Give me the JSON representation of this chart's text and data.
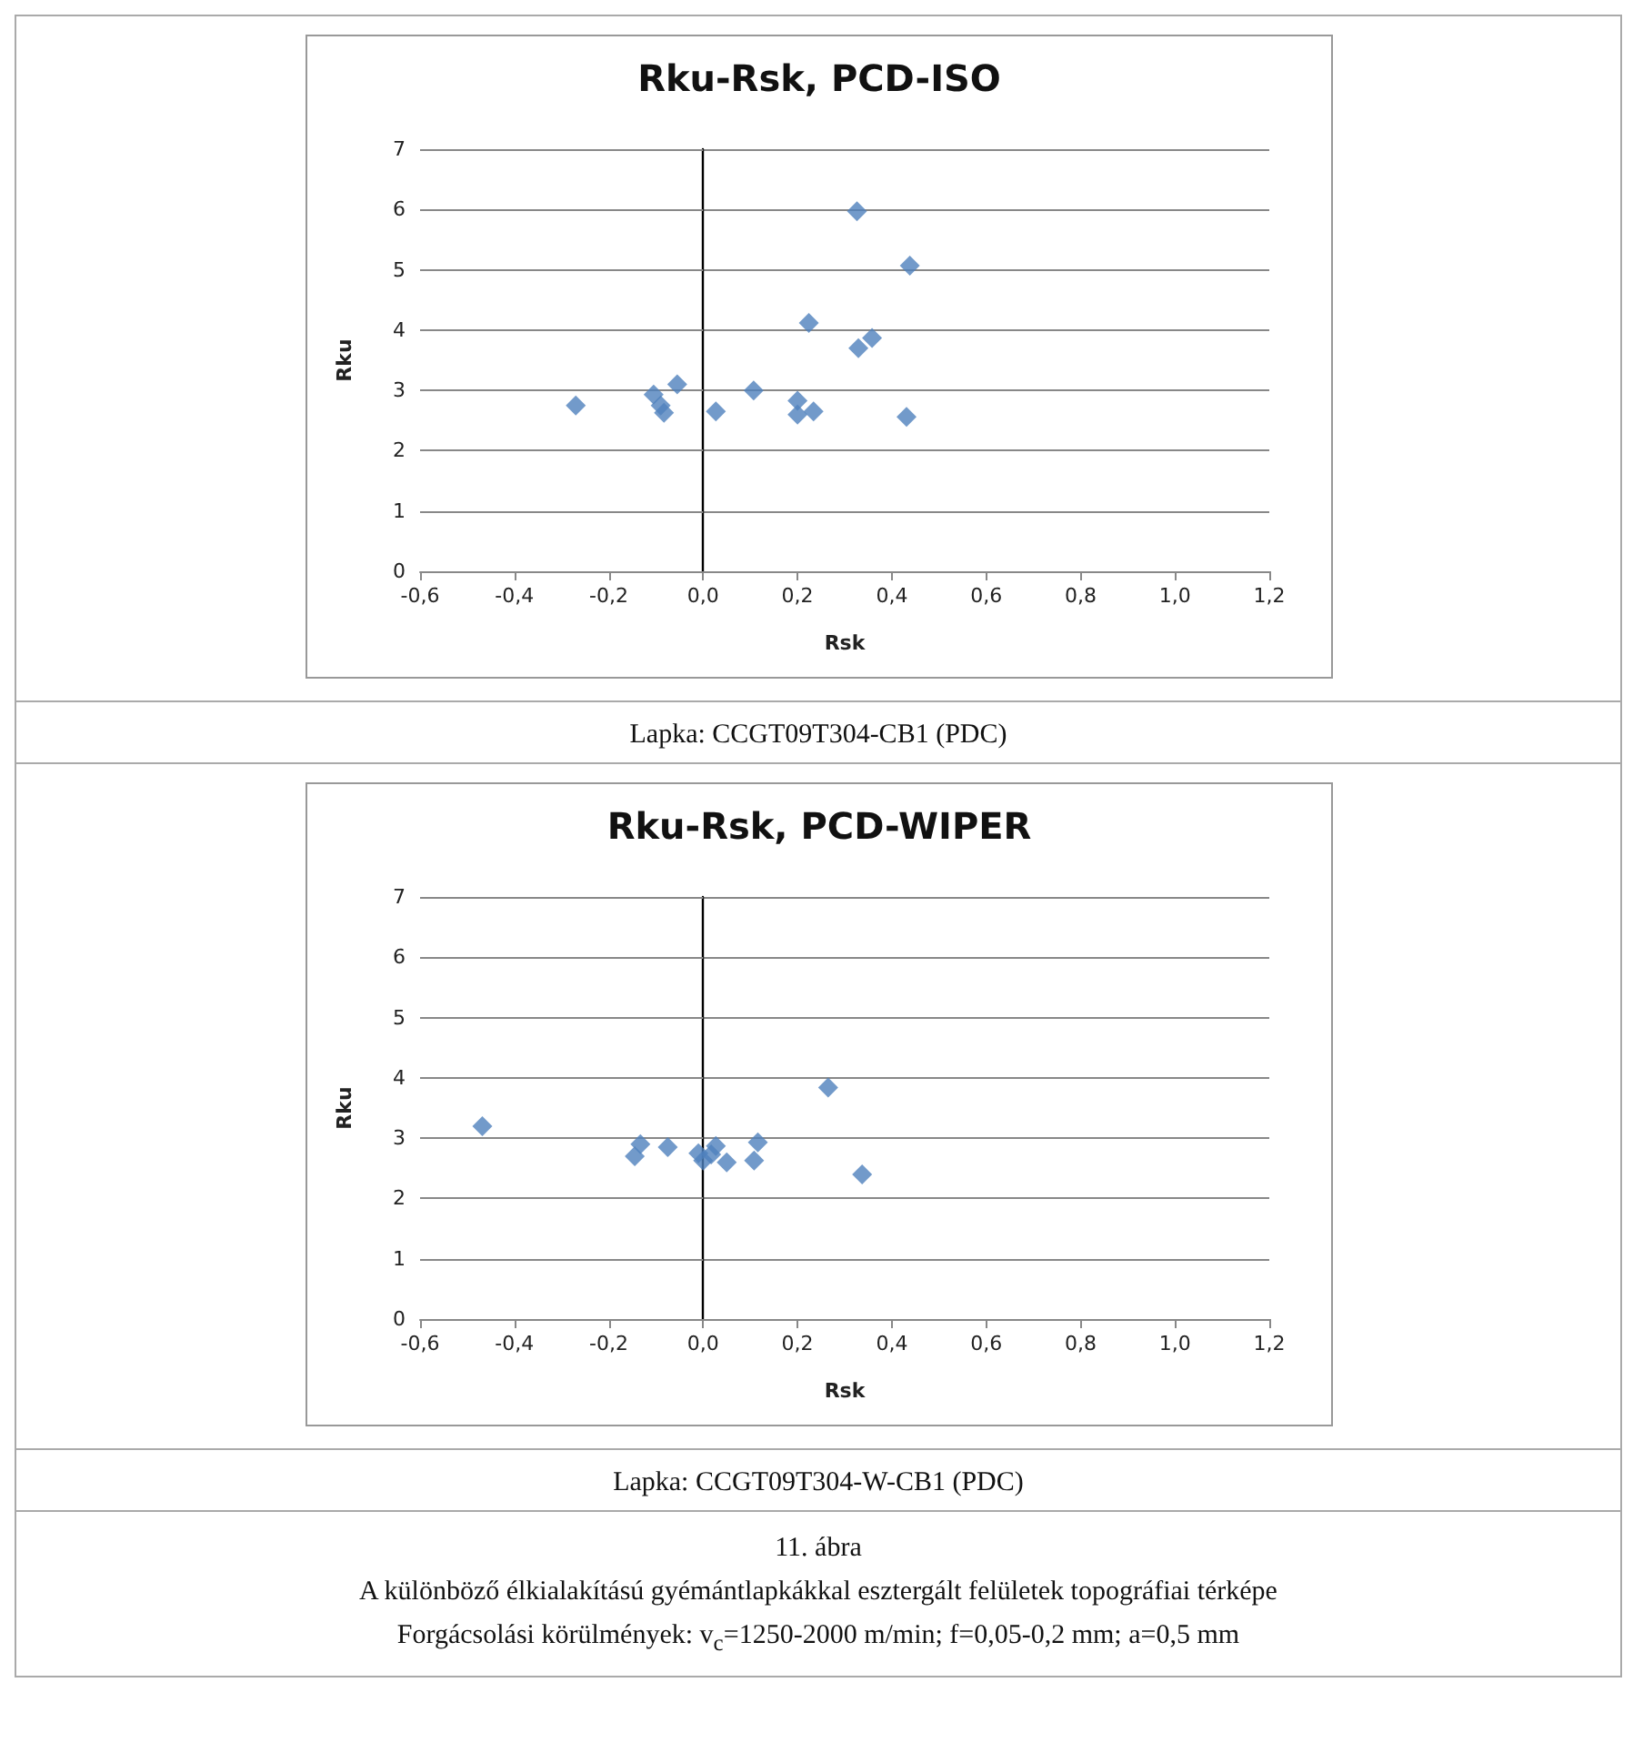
{
  "chart_data": [
    {
      "type": "scatter",
      "title": "Rku-Rsk, PCD-ISO",
      "xlabel": "Rsk",
      "ylabel": "Rku",
      "color": "#4f81bd",
      "marker": "diamond",
      "grid": "y",
      "x": [
        -0.27,
        -0.105,
        -0.095,
        -0.083,
        -0.09,
        -0.055,
        0.027,
        0.107,
        0.2,
        0.2,
        0.234,
        0.224,
        0.326,
        0.329,
        0.358,
        0.438,
        0.431
      ],
      "values": [
        2.75,
        2.93,
        null,
        2.63,
        2.75,
        3.1,
        2.65,
        3.0,
        2.83,
        2.6,
        2.65,
        4.12,
        5.97,
        3.7,
        3.87,
        5.07,
        2.56
      ],
      "xlim": [
        -0.6,
        1.2
      ],
      "xticks": [
        {
          "value": -0.6,
          "label": "-0,6"
        },
        {
          "value": -0.4,
          "label": "-0,4"
        },
        {
          "value": -0.2,
          "label": "-0,2"
        },
        {
          "value": 0,
          "label": "0,0"
        },
        {
          "value": 0.2,
          "label": "0,2"
        },
        {
          "value": 0.4,
          "label": "0,4"
        },
        {
          "value": 0.6,
          "label": "0,6"
        },
        {
          "value": 0.8,
          "label": "0,8"
        },
        {
          "value": 1.0,
          "label": "1,0"
        },
        {
          "value": 1.2,
          "label": "1,2"
        }
      ],
      "ylim": [
        0,
        7
      ],
      "yticks": [
        0,
        1,
        2,
        3,
        4,
        5,
        6,
        7
      ],
      "annotations": [
        "Lapka: CCGT09T304-CB1 (PDC)"
      ]
    },
    {
      "type": "scatter",
      "title": "Rku-Rsk, PCD-WIPER",
      "xlabel": "Rsk",
      "ylabel": "Rku",
      "color": "#4f81bd",
      "marker": "diamond",
      "grid": "y",
      "x": [
        -0.468,
        -0.145,
        -0.133,
        -0.075,
        -0.01,
        0.0,
        0.017,
        0.027,
        0.05,
        0.108,
        0.116,
        0.265,
        0.337
      ],
      "values": [
        3.2,
        2.7,
        2.9,
        2.85,
        2.75,
        2.63,
        2.73,
        2.87,
        2.6,
        2.63,
        2.93,
        3.84,
        2.4
      ],
      "xlim": [
        -0.6,
        1.2
      ],
      "xticks": [
        {
          "value": -0.6,
          "label": "-0,6"
        },
        {
          "value": -0.4,
          "label": "-0,4"
        },
        {
          "value": -0.2,
          "label": "-0,2"
        },
        {
          "value": 0,
          "label": "0,0"
        },
        {
          "value": 0.2,
          "label": "0,2"
        },
        {
          "value": 0.4,
          "label": "0,4"
        },
        {
          "value": 0.6,
          "label": "0,6"
        },
        {
          "value": 0.8,
          "label": "0,8"
        },
        {
          "value": 1.0,
          "label": "1,0"
        },
        {
          "value": 1.2,
          "label": "1,2"
        }
      ],
      "ylim": [
        0,
        7
      ],
      "yticks": [
        0,
        1,
        2,
        3,
        4,
        5,
        6,
        7
      ],
      "annotations": [
        "Lapka: CCGT09T304-W-CB1 (PDC)",
        "11. ábra",
        "A különböző élkialakítású gyémántlapkákkal esztergált felületek topográfiai térképe",
        "Forgácsolási körülmények: v$_{c}$=1250-2000 m/min; f=0,05-0,2 mm; a=0,5 mm"
      ]
    }
  ]
}
